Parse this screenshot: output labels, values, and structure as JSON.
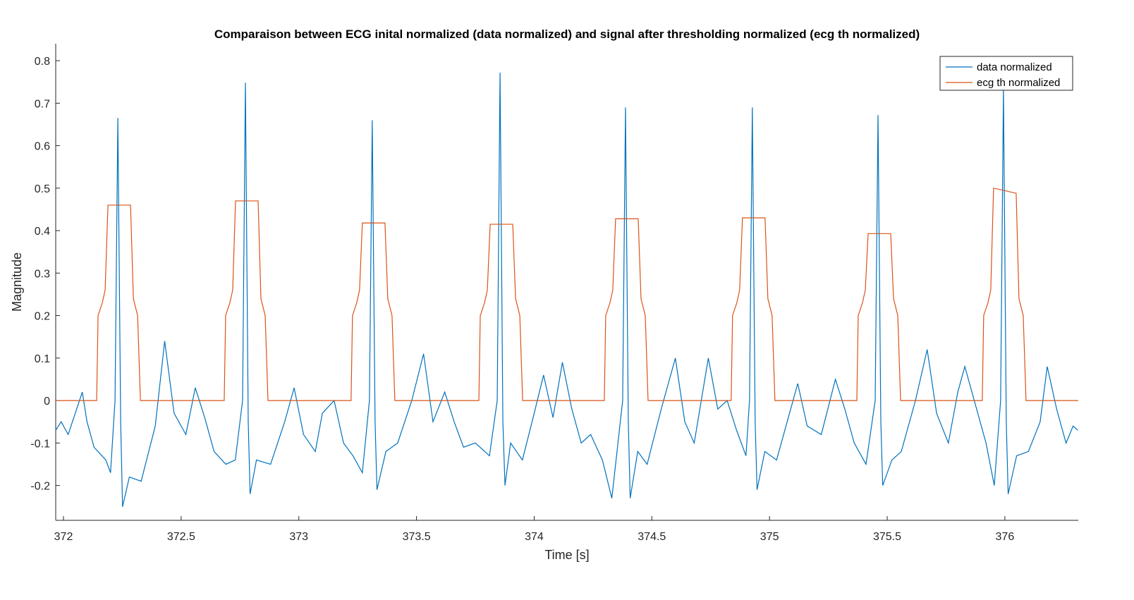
{
  "chart_data": {
    "type": "line",
    "title": "Comparaison between ECG inital normalized (data normalized) and signal after thresholding normalized (ecg th normalized)",
    "x_label": "Time [s]",
    "y_label": "Magnitude",
    "xlim": [
      371.967,
      376.312
    ],
    "ylim": [
      -0.282,
      0.84
    ],
    "xticks": [
      372,
      372.5,
      373,
      373.5,
      374,
      374.5,
      375,
      375.5,
      376
    ],
    "yticks": [
      -0.2,
      -0.1,
      0,
      0.1,
      0.2,
      0.3,
      0.4,
      0.5,
      0.6,
      0.7,
      0.8
    ],
    "legend": "top-right",
    "series": [
      {
        "name": "data normalized",
        "color": "#0072bd",
        "x": [
          371.967,
          371.99,
          372.02,
          372.05,
          372.08,
          372.1,
          372.13,
          372.18,
          372.2,
          372.219,
          372.231,
          372.243,
          372.251,
          372.28,
          372.33,
          372.39,
          372.43,
          372.47,
          372.52,
          372.56,
          372.6,
          372.64,
          372.69,
          372.73,
          372.761,
          372.773,
          372.785,
          372.793,
          372.82,
          372.88,
          372.94,
          372.98,
          373.02,
          373.07,
          373.1,
          373.15,
          373.19,
          373.23,
          373.27,
          373.3,
          373.312,
          373.324,
          373.332,
          373.37,
          373.42,
          373.48,
          373.53,
          373.57,
          373.62,
          373.66,
          373.7,
          373.75,
          373.81,
          373.843,
          373.855,
          373.867,
          373.876,
          373.9,
          373.95,
          374.0,
          374.04,
          374.08,
          374.12,
          374.16,
          374.2,
          374.24,
          374.29,
          374.33,
          374.376,
          374.388,
          374.4,
          374.408,
          374.44,
          374.48,
          374.54,
          374.6,
          374.64,
          374.68,
          374.74,
          374.78,
          374.82,
          374.86,
          374.9,
          374.915,
          374.927,
          374.939,
          374.947,
          374.98,
          375.03,
          375.08,
          375.12,
          375.16,
          375.22,
          375.28,
          375.32,
          375.36,
          375.41,
          375.449,
          375.461,
          375.473,
          375.481,
          375.52,
          375.56,
          375.62,
          375.67,
          375.71,
          375.76,
          375.8,
          375.83,
          375.87,
          375.92,
          375.955,
          375.982,
          375.994,
          376.006,
          376.014,
          376.05,
          376.1,
          376.15,
          376.18,
          376.22,
          376.26,
          376.29,
          376.31
        ],
        "values": [
          -0.07,
          -0.05,
          -0.08,
          -0.03,
          0.02,
          -0.05,
          -0.11,
          -0.14,
          -0.17,
          0.0,
          0.665,
          -0.05,
          -0.25,
          -0.18,
          -0.19,
          -0.06,
          0.14,
          -0.03,
          -0.08,
          0.03,
          -0.04,
          -0.12,
          -0.15,
          -0.14,
          0.0,
          0.748,
          -0.05,
          -0.22,
          -0.14,
          -0.15,
          -0.05,
          0.03,
          -0.08,
          -0.12,
          -0.03,
          0.0,
          -0.1,
          -0.13,
          -0.17,
          0.0,
          0.66,
          -0.05,
          -0.21,
          -0.12,
          -0.1,
          0.0,
          0.11,
          -0.05,
          0.02,
          -0.05,
          -0.11,
          -0.1,
          -0.13,
          0.0,
          0.772,
          -0.05,
          -0.2,
          -0.1,
          -0.14,
          -0.03,
          0.06,
          -0.04,
          0.09,
          -0.02,
          -0.1,
          -0.08,
          -0.14,
          -0.23,
          0.0,
          0.69,
          -0.05,
          -0.23,
          -0.12,
          -0.15,
          -0.02,
          0.1,
          -0.05,
          -0.1,
          0.1,
          -0.02,
          0.0,
          -0.07,
          -0.13,
          0.0,
          0.69,
          -0.05,
          -0.21,
          -0.12,
          -0.14,
          -0.04,
          0.04,
          -0.06,
          -0.08,
          0.05,
          -0.02,
          -0.1,
          -0.15,
          0.0,
          0.672,
          -0.05,
          -0.2,
          -0.14,
          -0.12,
          0.0,
          0.12,
          -0.03,
          -0.1,
          0.02,
          0.08,
          0.0,
          -0.1,
          -0.2,
          0.0,
          0.735,
          -0.05,
          -0.22,
          -0.13,
          -0.12,
          -0.05,
          0.08,
          -0.02,
          -0.1,
          -0.06,
          -0.07
        ]
      },
      {
        "name": "ecg th normalized",
        "color": "#d95319",
        "x": [
          371.967,
          372.141,
          372.147,
          372.165,
          372.177,
          372.189,
          372.285,
          372.297,
          372.315,
          372.327,
          372.683,
          372.689,
          372.707,
          372.719,
          372.731,
          372.827,
          372.839,
          372.857,
          372.869,
          373.222,
          373.228,
          373.246,
          373.258,
          373.27,
          373.366,
          373.378,
          373.396,
          373.408,
          373.765,
          373.771,
          373.789,
          373.801,
          373.813,
          373.909,
          373.921,
          373.939,
          373.951,
          374.298,
          374.304,
          374.322,
          374.334,
          374.346,
          374.442,
          374.454,
          374.472,
          374.484,
          374.837,
          374.843,
          374.861,
          374.873,
          374.885,
          374.981,
          374.993,
          375.011,
          375.023,
          375.371,
          375.377,
          375.395,
          375.407,
          375.419,
          375.515,
          375.527,
          375.545,
          375.557,
          375.904,
          375.91,
          375.928,
          375.94,
          375.952,
          376.048,
          376.06,
          376.078,
          376.09,
          376.312
        ],
        "values": [
          0,
          0,
          0.2,
          0.23,
          0.26,
          0.46,
          0.46,
          0.24,
          0.2,
          0,
          0,
          0.2,
          0.23,
          0.26,
          0.47,
          0.47,
          0.24,
          0.2,
          0,
          0,
          0.2,
          0.23,
          0.26,
          0.418,
          0.418,
          0.24,
          0.2,
          0,
          0,
          0.2,
          0.23,
          0.26,
          0.415,
          0.415,
          0.24,
          0.2,
          0,
          0,
          0.2,
          0.23,
          0.26,
          0.428,
          0.428,
          0.24,
          0.2,
          0,
          0,
          0.2,
          0.23,
          0.26,
          0.43,
          0.43,
          0.24,
          0.2,
          0,
          0,
          0.2,
          0.23,
          0.26,
          0.393,
          0.393,
          0.24,
          0.2,
          0,
          0,
          0.2,
          0.23,
          0.26,
          0.5,
          0.488,
          0.24,
          0.2,
          0,
          0
        ]
      }
    ]
  }
}
